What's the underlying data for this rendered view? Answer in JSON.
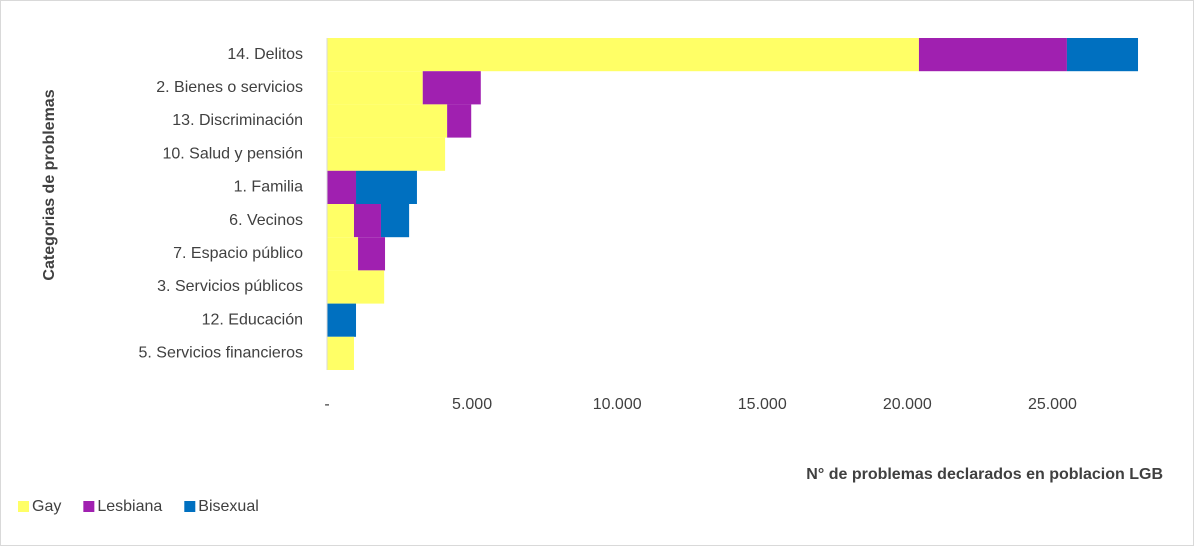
{
  "chart_data": {
    "type": "bar",
    "orientation": "horizontal",
    "stacked": true,
    "x_label": "N° de problemas declarados en poblacion LGB",
    "y_label": "Categorias de problemas",
    "categories": [
      "14. Delitos",
      "2. Bienes o servicios",
      "13. Discriminación",
      "10. Salud y pensión",
      "1. Familia",
      "6. Vecinos",
      "7. Espacio público",
      "3. Servicios públicos",
      "12. Educación",
      "5. Servicios financieros"
    ],
    "series": [
      {
        "name": "Gay",
        "color": "#ffff66",
        "values": [
          20400,
          3300,
          4140,
          4070,
          0,
          930,
          1070,
          1970,
          0,
          930
        ]
      },
      {
        "name": "Lesbiana",
        "color": "#a020b0",
        "values": [
          5100,
          2000,
          830,
          0,
          1000,
          930,
          930,
          0,
          0,
          0
        ]
      },
      {
        "name": "Bisexual",
        "color": "#0070c0",
        "values": [
          2450,
          0,
          0,
          0,
          2100,
          970,
          0,
          0,
          1000,
          0
        ]
      }
    ],
    "xlim": [
      0,
      30000
    ],
    "xticks": [
      {
        "value": 0,
        "label": "-"
      },
      {
        "value": 5000,
        "label": "5.000"
      },
      {
        "value": 10000,
        "label": "10.000"
      },
      {
        "value": 15000,
        "label": "15.000"
      },
      {
        "value": 20000,
        "label": "20.000"
      },
      {
        "value": 25000,
        "label": "25.000"
      }
    ],
    "legend": "bottom-left"
  }
}
